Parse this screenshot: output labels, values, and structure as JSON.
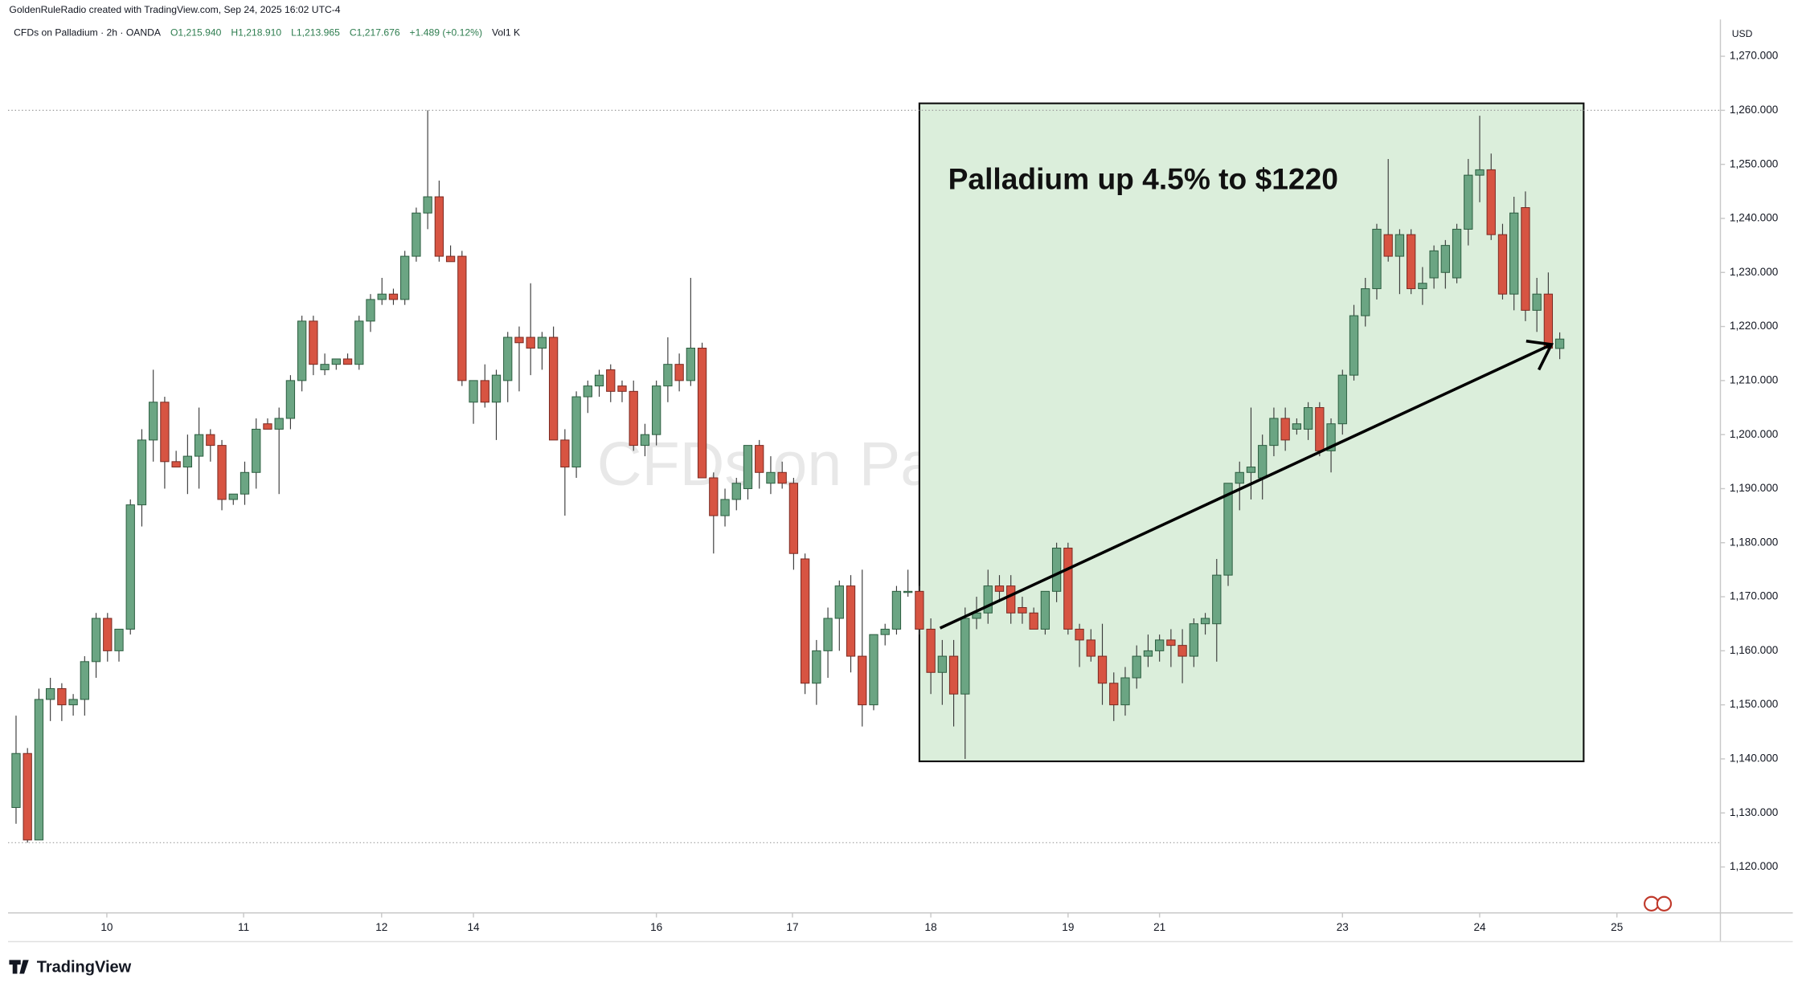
{
  "header": {
    "credit": "GoldenRuleRadio created with TradingView.com, Sep 24, 2025 16:02 UTC-4",
    "symbol": "CFDs on Palladium · 2h · OANDA",
    "ohlc": [
      "O1,215.940",
      "H1,218.910",
      "L1,213.965",
      "C1,217.676"
    ],
    "change": "+1.489 (+0.12%)",
    "volume": "Vol1 K"
  },
  "chart_data": {
    "type": "candlestick",
    "watermark": "CFDs on Palladium",
    "annotation": "Palladium up 4.5% to $1220",
    "y_axis_label": "USD",
    "up_color": "#6ba583",
    "down_color": "#d75442",
    "wick_color": "#3a3a3a",
    "open": [
      1131,
      1141,
      1125,
      1151,
      1153,
      1150,
      1151,
      1158,
      1166,
      1160,
      1164,
      1187,
      1199,
      1206,
      1195,
      1194,
      1196,
      1200,
      1198,
      1188,
      1189,
      1193,
      1202,
      1201,
      1203,
      1210,
      1221,
      1212,
      1213,
      1214,
      1213,
      1221,
      1225,
      1226,
      1225,
      1233,
      1241,
      1244,
      1233,
      1233,
      1206,
      1210,
      1206,
      1210,
      1218,
      1218,
      1216,
      1218,
      1199,
      1194,
      1207,
      1209,
      1212,
      1209,
      1208,
      1198,
      1200,
      1209,
      1213,
      1210,
      1216,
      1192,
      1185,
      1188,
      1190,
      1198,
      1191,
      1193,
      1191,
      1177,
      1154,
      1160,
      1166,
      1172,
      1159,
      1150,
      1163,
      1164,
      1171,
      1171,
      1164,
      1156,
      1159,
      1152,
      1166,
      1167,
      1172,
      1172,
      1168,
      1167,
      1164,
      1171,
      1179,
      1164,
      1162,
      1159,
      1154,
      1150,
      1155,
      1159,
      1160,
      1162,
      1161,
      1159,
      1165,
      1165,
      1174,
      1191,
      1193,
      1192,
      1198,
      1203,
      1201,
      1201,
      1205,
      1197,
      1202,
      1211,
      1222,
      1227,
      1237,
      1233,
      1237,
      1227,
      1229,
      1230,
      1229,
      1238,
      1248,
      1249,
      1237,
      1226,
      1242,
      1223,
      1226,
      1215.94
    ],
    "high": [
      1148,
      1142,
      1153,
      1155,
      1154,
      1152,
      1159,
      1167,
      1167,
      1164,
      1188,
      1201,
      1212,
      1207,
      1197,
      1200,
      1205,
      1201,
      1199,
      1189,
      1195,
      1203,
      1203,
      1205,
      1211,
      1222,
      1222,
      1215,
      1214,
      1215,
      1222,
      1226,
      1229,
      1227,
      1234,
      1242,
      1260,
      1247,
      1235,
      1234,
      1210,
      1213,
      1212,
      1219,
      1220,
      1228,
      1219,
      1220,
      1201,
      1208,
      1210,
      1212,
      1213,
      1210,
      1210,
      1202,
      1210,
      1218,
      1215,
      1229,
      1217,
      1193,
      1190,
      1192,
      1198,
      1199,
      1196,
      1195,
      1192,
      1178,
      1162,
      1168,
      1173,
      1174,
      1175,
      1163,
      1165,
      1172,
      1175,
      1172,
      1166,
      1162,
      1162,
      1168,
      1170,
      1175,
      1174,
      1174,
      1170,
      1168,
      1171,
      1180,
      1180,
      1165,
      1164,
      1165,
      1156,
      1157,
      1161,
      1163,
      1163,
      1164,
      1164,
      1166,
      1167,
      1177,
      1191,
      1195,
      1205,
      1200,
      1205,
      1205,
      1203,
      1206,
      1206,
      1203,
      1212,
      1224,
      1229,
      1239,
      1251,
      1238,
      1238,
      1231,
      1235,
      1236,
      1239,
      1251,
      1259,
      1252,
      1239,
      1244,
      1245,
      1229,
      1230,
      1218.91
    ],
    "low": [
      1128,
      1124.5,
      1125,
      1147,
      1147,
      1148,
      1148,
      1155,
      1158,
      1158,
      1163,
      1183,
      1195,
      1190,
      1194,
      1189,
      1190,
      1195,
      1186,
      1187,
      1187,
      1190,
      1201,
      1189,
      1201,
      1208,
      1211,
      1211,
      1212,
      1213,
      1212,
      1219,
      1224,
      1224,
      1224,
      1232,
      1238,
      1232,
      1232,
      1209,
      1202,
      1205,
      1199,
      1206,
      1208,
      1211,
      1212,
      1199,
      1185,
      1192,
      1204,
      1207,
      1206,
      1206,
      1197,
      1196,
      1198,
      1206,
      1208,
      1209,
      1192,
      1178,
      1183,
      1186,
      1188,
      1190,
      1189,
      1190,
      1175,
      1152,
      1150,
      1155,
      1160,
      1156,
      1146,
      1149,
      1161,
      1163,
      1170,
      1163,
      1152,
      1150,
      1146,
      1140,
      1164,
      1165,
      1169,
      1165,
      1165,
      1164,
      1163,
      1169,
      1163,
      1157,
      1158,
      1150,
      1147,
      1148,
      1153,
      1157,
      1158,
      1157,
      1154,
      1157,
      1163,
      1158,
      1172,
      1186,
      1188,
      1188,
      1196,
      1197,
      1200,
      1199,
      1196,
      1193,
      1200,
      1210,
      1220,
      1225,
      1232,
      1226,
      1226,
      1224,
      1227,
      1227,
      1228,
      1235,
      1243,
      1236,
      1225,
      1223,
      1221,
      1219,
      1215,
      1213.965
    ],
    "close": [
      1141,
      1125,
      1151,
      1153,
      1150,
      1151,
      1158,
      1166,
      1160,
      1164,
      1187,
      1199,
      1206,
      1195,
      1194,
      1196,
      1200,
      1198,
      1188,
      1189,
      1193,
      1201,
      1201,
      1203,
      1210,
      1221,
      1213,
      1213,
      1214,
      1213,
      1221,
      1225,
      1226,
      1225,
      1233,
      1241,
      1244,
      1233,
      1232,
      1210,
      1210,
      1206,
      1211,
      1218,
      1217,
      1216,
      1218,
      1199,
      1194,
      1207,
      1209,
      1211,
      1208,
      1208,
      1198,
      1200,
      1209,
      1213,
      1210,
      1216,
      1192,
      1185,
      1188,
      1191,
      1198,
      1193,
      1193,
      1191,
      1178,
      1154,
      1160,
      1166,
      1172,
      1159,
      1150,
      1163,
      1164,
      1171,
      1171,
      1164,
      1156,
      1159,
      1152,
      1166,
      1167,
      1172,
      1171,
      1167,
      1167,
      1164,
      1171,
      1179,
      1164,
      1162,
      1159,
      1154,
      1150,
      1155,
      1159,
      1160,
      1162,
      1161,
      1159,
      1165,
      1166,
      1174,
      1191,
      1193,
      1194,
      1198,
      1203,
      1199,
      1202,
      1205,
      1197,
      1202,
      1211,
      1222,
      1227,
      1238,
      1233,
      1237,
      1227,
      1228,
      1234,
      1235,
      1238,
      1248,
      1249,
      1237,
      1226,
      1241,
      1223,
      1226,
      1216,
      1217.676
    ],
    "xlim": [
      -0.7,
      149.05
    ],
    "xticks": [
      {
        "value": 7.94,
        "label": "10"
      },
      {
        "value": 19.9,
        "label": "11"
      },
      {
        "value": 31.97,
        "label": "12"
      },
      {
        "value": 40,
        "label": "14"
      },
      {
        "value": 56,
        "label": "16"
      },
      {
        "value": 67.9,
        "label": "17"
      },
      {
        "value": 80,
        "label": "18"
      },
      {
        "value": 92,
        "label": "19"
      },
      {
        "value": 100,
        "label": "21"
      },
      {
        "value": 116,
        "label": "23"
      },
      {
        "value": 128,
        "label": "24"
      },
      {
        "value": 140,
        "label": "25"
      }
    ],
    "ylim": [
      1111.5,
      1276.8
    ],
    "yticks": [
      {
        "value": 1120,
        "label": "1,120.000"
      },
      {
        "value": 1130,
        "label": "1,130.000"
      },
      {
        "value": 1140,
        "label": "1,140.000"
      },
      {
        "value": 1150,
        "label": "1,150.000"
      },
      {
        "value": 1160,
        "label": "1,160.000"
      },
      {
        "value": 1170,
        "label": "1,170.000"
      },
      {
        "value": 1180,
        "label": "1,180.000"
      },
      {
        "value": 1190,
        "label": "1,190.000"
      },
      {
        "value": 1200,
        "label": "1,200.000"
      },
      {
        "value": 1210,
        "label": "1,210.000"
      },
      {
        "value": 1220,
        "label": "1,220.000"
      },
      {
        "value": 1230,
        "label": "1,230.000"
      },
      {
        "value": 1240,
        "label": "1,240.000"
      },
      {
        "value": 1250,
        "label": "1,250.000"
      },
      {
        "value": 1260,
        "label": "1,260.000"
      },
      {
        "value": 1270,
        "label": "1,270.000"
      }
    ],
    "high_low_lines": true
  },
  "footer": {
    "logo": "TradingView"
  }
}
